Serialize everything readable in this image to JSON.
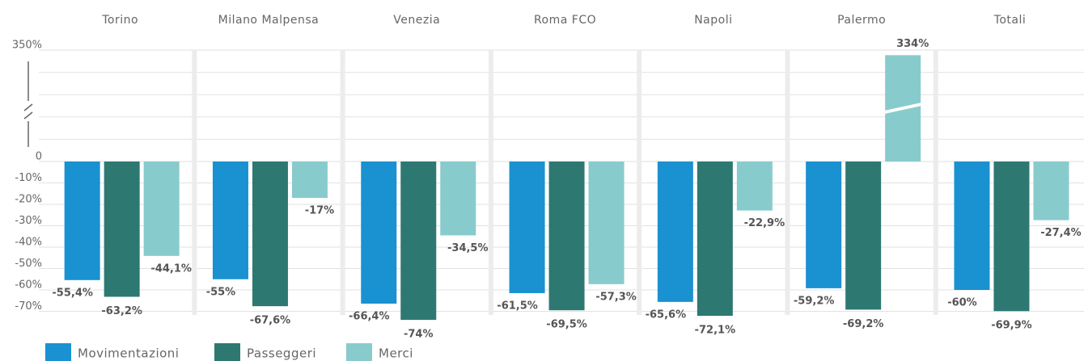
{
  "chart_data": {
    "type": "bar",
    "categories": [
      "Torino",
      "Milano Malpensa",
      "Venezia",
      "Roma FCO",
      "Napoli",
      "Palermo",
      "Totali"
    ],
    "series": [
      {
        "name": "Movimentazioni",
        "color": "#1a91d0",
        "values": [
          -55.4,
          -55,
          -66.4,
          -61.5,
          -65.6,
          -59.2,
          -60
        ],
        "value_labels": [
          "-55,4%",
          "-55%",
          "-66,4%",
          "-61,5%",
          "-65,6%",
          "-59,2%",
          "-60%"
        ]
      },
      {
        "name": "Passeggeri",
        "color": "#2e7872",
        "values": [
          -63.2,
          -67.6,
          -74,
          -69.5,
          -72.1,
          -69.2,
          -69.9
        ],
        "value_labels": [
          "-63,2%",
          "-67,6%",
          "-74%",
          "-69,5%",
          "-72,1%",
          "-69,2%",
          "-69,9%"
        ]
      },
      {
        "name": "Merci",
        "color": "#88cbcd",
        "values": [
          -44.1,
          -17,
          -34.5,
          -57.3,
          -22.9,
          334,
          -27.4
        ],
        "value_labels": [
          "-44,1%",
          "-17%",
          "-34,5%",
          "-57,3%",
          "-22,9%",
          "334%",
          "-27,4%"
        ]
      }
    ],
    "ylim": [
      -70,
      350
    ],
    "yticks": [
      {
        "value": 350,
        "label": "350%"
      },
      0,
      {
        "value": -10,
        "label": "-10%"
      },
      {
        "value": -20,
        "label": "-20%"
      },
      {
        "value": -30,
        "label": "-30%"
      },
      {
        "value": -40,
        "label": "-40%"
      },
      {
        "value": -50,
        "label": "-50%"
      },
      {
        "value": -60,
        "label": "-60%"
      },
      {
        "value": -70,
        "label": "-70%"
      }
    ],
    "broken_axis": true,
    "grid": true,
    "legend": "bottom-left"
  }
}
